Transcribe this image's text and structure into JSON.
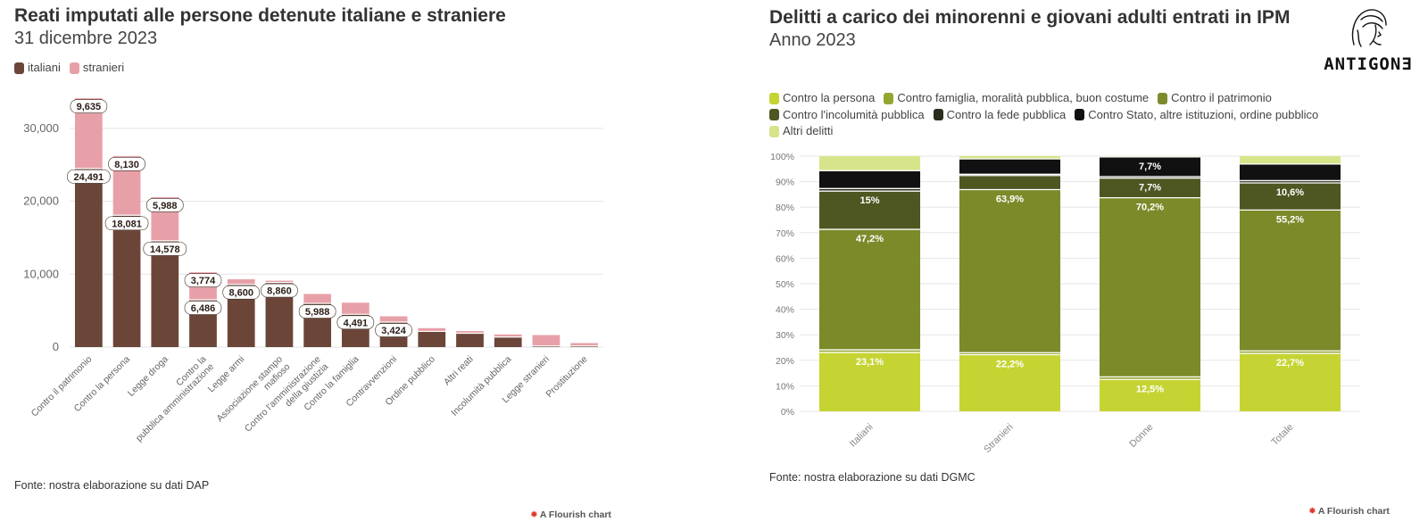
{
  "left": {
    "title": "Reati imputati alle persone detenute italiane e straniere",
    "subtitle": "31 dicembre 2023",
    "legend": [
      {
        "label": "italiani",
        "color": "#6b4638"
      },
      {
        "label": "stranieri",
        "color": "#e8a0a8"
      }
    ],
    "source": "Fonte: nostra elaborazione su dati DAP",
    "flourish": "A Flourish chart"
  },
  "right": {
    "title": "Delitti a carico dei minorenni e giovani adulti entrati in IPM",
    "subtitle": "Anno 2023",
    "legend": [
      {
        "label": "Contro la persona",
        "color": "#c5d433"
      },
      {
        "label": "Contro famiglia, moralità pubblica, buon costume",
        "color": "#93a630"
      },
      {
        "label": "Contro il patrimonio",
        "color": "#7d8a2a"
      },
      {
        "label": "Contro l'incolumità pubblica",
        "color": "#4e5722"
      },
      {
        "label": "Contro la fede pubblica",
        "color": "#2b2e1d"
      },
      {
        "label": "Contro Stato, altre istituzioni, ordine pubblico",
        "color": "#111111"
      },
      {
        "label": "Altri delitti",
        "color": "#d8e48a"
      }
    ],
    "source": "Fonte: nostra elaborazione su dati DGMC",
    "flourish": "A Flourish chart",
    "logo_text": "ANTIGONƎ"
  },
  "chart_data": [
    {
      "type": "bar",
      "stacked": true,
      "title": "Reati imputati alle persone detenute italiane e straniere",
      "subtitle": "31 dicembre 2023",
      "categories": [
        "Contro il patrimonio",
        "Contro la persona",
        "Legge droga",
        "Contro la pubblica amministrazione",
        "Legge armi",
        "Associazione stampo mafioso",
        "Contro l'amministrazione della giustizia",
        "Contro la famiglia",
        "Contravvenzioni",
        "Ordine pubblico",
        "Altri reati",
        "Incolumità pubblica",
        "Legge stranieri",
        "Prostituzione"
      ],
      "series": [
        {
          "name": "italiani",
          "color": "#6b4638",
          "values": [
            24491,
            18081,
            14578,
            6486,
            8600,
            8860,
            5988,
            4491,
            3424,
            2150,
            1900,
            1380,
            150,
            150
          ],
          "labels": [
            "24,491",
            "18,081",
            "14,578",
            "6,486",
            "8,600",
            "8,860",
            "5,988",
            "4,491",
            "3,424",
            null,
            null,
            null,
            null,
            null
          ]
        },
        {
          "name": "stranieri",
          "color": "#e8a0a8",
          "values": [
            9635,
            8130,
            5988,
            3774,
            700,
            250,
            1300,
            1600,
            800,
            450,
            300,
            350,
            1500,
            400
          ],
          "labels": [
            "9,635",
            "8,130",
            "5,988",
            "3,774",
            null,
            null,
            null,
            null,
            null,
            null,
            null,
            null,
            null,
            null
          ]
        }
      ],
      "ylim": [
        0,
        35000
      ],
      "yticks": [
        0,
        10000,
        20000,
        30000
      ],
      "ytick_labels": [
        "0",
        "10,000",
        "20,000",
        "30,000"
      ],
      "grid": true,
      "legend_position": "top-left"
    },
    {
      "type": "bar",
      "stacked": true,
      "percent": true,
      "title": "Delitti a carico dei minorenni e giovani adulti entrati in IPM",
      "subtitle": "Anno 2023",
      "categories": [
        "Italiani",
        "Stranieri",
        "Donne",
        "Totale"
      ],
      "series": [
        {
          "name": "Contro la persona",
          "color": "#c5d433",
          "values": [
            23.1,
            22.2,
            12.5,
            22.7
          ],
          "labels": [
            "23,1%",
            "22,2%",
            "12,5%",
            "22,7%"
          ]
        },
        {
          "name": "Contro famiglia, moralità pubblica, buon costume",
          "color": "#93a630",
          "values": [
            1.0,
            0.8,
            1.0,
            1.0
          ],
          "labels": [
            null,
            null,
            null,
            null
          ]
        },
        {
          "name": "Contro il patrimonio",
          "color": "#7d8a2a",
          "values": [
            47.2,
            63.9,
            70.2,
            55.2
          ],
          "labels": [
            "47,2%",
            "63,9%",
            "70,2%",
            "55,2%"
          ]
        },
        {
          "name": "Contro l'incolumità pubblica",
          "color": "#4e5722",
          "values": [
            15.0,
            5.5,
            7.7,
            10.6
          ],
          "labels": [
            "15%",
            null,
            "7,7%",
            "10,6%"
          ]
        },
        {
          "name": "Contro la fede pubblica",
          "color": "#2b2e1d",
          "values": [
            1.0,
            0.5,
            0.6,
            0.9
          ],
          "labels": [
            null,
            null,
            null,
            null
          ]
        },
        {
          "name": "Contro Stato, altre istituzioni, ordine pubblico",
          "color": "#111111",
          "values": [
            7.0,
            6.0,
            7.7,
            6.5
          ],
          "labels": [
            null,
            null,
            "7,7%",
            null
          ]
        },
        {
          "name": "Altri delitti",
          "color": "#d8e48a",
          "values": [
            5.7,
            1.1,
            0.3,
            3.1
          ],
          "labels": [
            null,
            null,
            null,
            null
          ]
        }
      ],
      "ylim": [
        0,
        100
      ],
      "yticks": [
        0,
        10,
        20,
        30,
        40,
        50,
        60,
        70,
        80,
        90,
        100
      ],
      "ytick_labels": [
        "0%",
        "10%",
        "20%",
        "30%",
        "40%",
        "50%",
        "60%",
        "70%",
        "80%",
        "90%",
        "100%"
      ],
      "grid": true,
      "legend_position": "top"
    }
  ]
}
